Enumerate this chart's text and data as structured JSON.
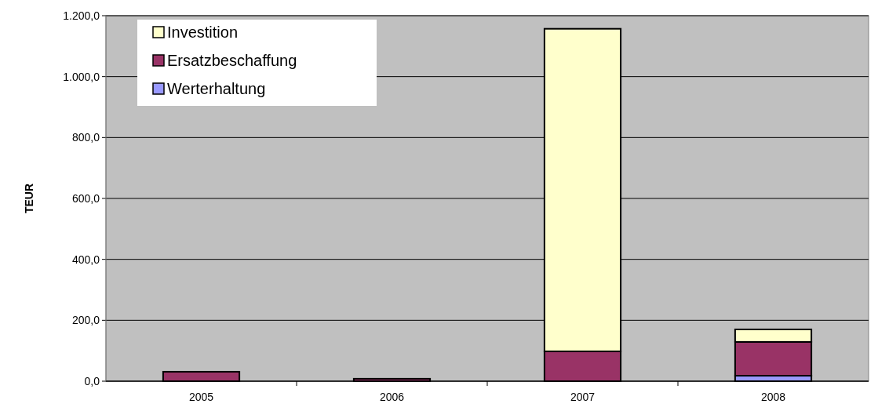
{
  "chart_data": {
    "type": "bar",
    "stacked": true,
    "ylabel": "TEUR",
    "categories": [
      "2005",
      "2006",
      "2007",
      "2008"
    ],
    "series": [
      {
        "name": "Werterhaltung",
        "color": "#9999ff",
        "values": [
          0,
          0,
          0,
          18
        ]
      },
      {
        "name": "Ersatzbeschaffung",
        "color": "#993366",
        "values": [
          31,
          8,
          98,
          111
        ]
      },
      {
        "name": "Investition",
        "color": "#ffffcc",
        "values": [
          0,
          0,
          1059,
          41
        ]
      }
    ],
    "ylim": [
      0,
      1200
    ],
    "yticks": [
      {
        "value": 0,
        "label": "0,0"
      },
      {
        "value": 200,
        "label": "200,0"
      },
      {
        "value": 400,
        "label": "400,0"
      },
      {
        "value": 600,
        "label": "600,0"
      },
      {
        "value": 800,
        "label": "800,0"
      },
      {
        "value": 1000,
        "label": "1.000,0"
      },
      {
        "value": 1200,
        "label": "1.200,0"
      }
    ],
    "grid": "y",
    "legend": "top left"
  }
}
